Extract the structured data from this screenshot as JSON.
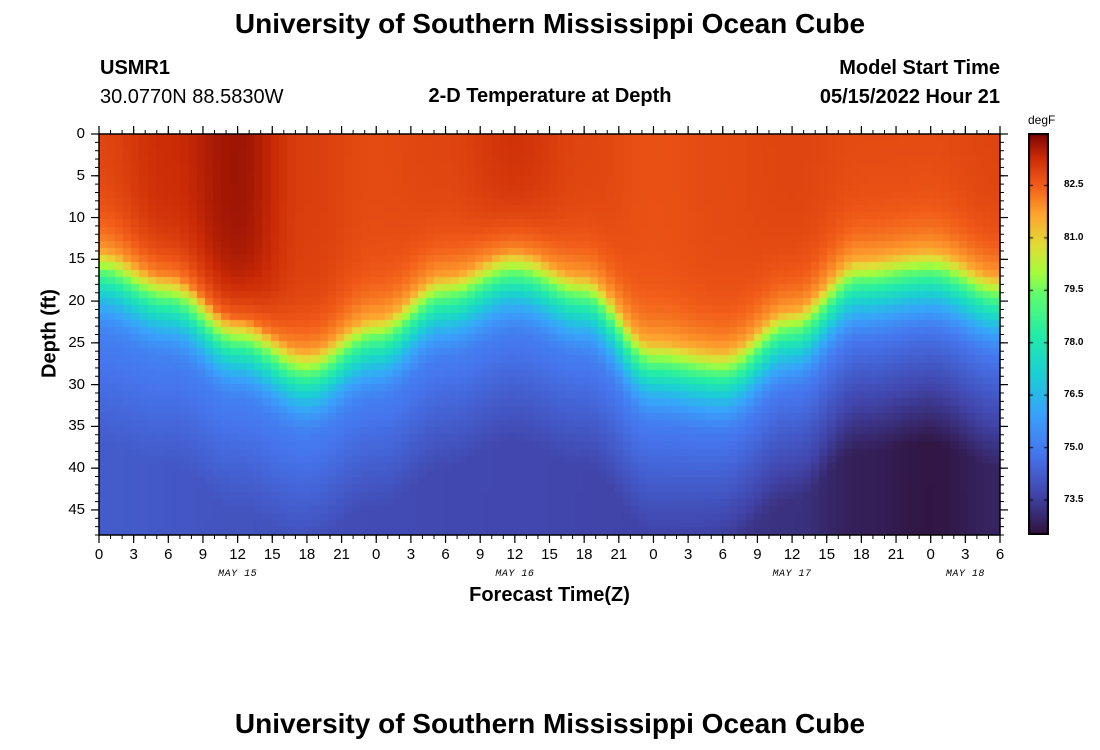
{
  "header": {
    "title": "University of Southern Mississippi Ocean Cube",
    "station": "USMR1",
    "coordinates": "30.0770N  88.5830W",
    "plot_title": "2-D Temperature at Depth",
    "model_label": "Model Start Time",
    "model_time": "05/15/2022 Hour 21"
  },
  "footer": {
    "title": "University of Southern Mississippi Ocean Cube"
  },
  "chart_data": {
    "type": "heatmap",
    "title": "2-D Temperature at Depth",
    "xlabel": "Forecast Time(Z)",
    "ylabel": "Depth (ft)",
    "x_unit": "hours since 05/15 00Z",
    "xlim": [
      0,
      78
    ],
    "ylim": [
      48,
      0
    ],
    "x_tick_values": [
      0,
      3,
      6,
      9,
      12,
      15,
      18,
      21,
      24,
      27,
      30,
      33,
      36,
      39,
      42,
      45,
      48,
      51,
      54,
      57,
      60,
      63,
      66,
      69,
      72,
      75,
      78
    ],
    "x_tick_labels": [
      "0",
      "3",
      "6",
      "9",
      "12",
      "15",
      "18",
      "21",
      "0",
      "3",
      "6",
      "9",
      "12",
      "15",
      "18",
      "21",
      "0",
      "3",
      "6",
      "9",
      "12",
      "15",
      "18",
      "21",
      "0",
      "3",
      "6"
    ],
    "date_labels": [
      {
        "hour": 12,
        "text": "MAY 15"
      },
      {
        "hour": 36,
        "text": "MAY 16"
      },
      {
        "hour": 60,
        "text": "MAY 17"
      },
      {
        "hour": 75,
        "text": "MAY 18"
      }
    ],
    "y_tick_values": [
      0,
      5,
      10,
      15,
      20,
      25,
      30,
      35,
      40,
      45
    ],
    "y_tick_labels": [
      "0",
      "5",
      "10",
      "15",
      "20",
      "25",
      "30",
      "35",
      "40",
      "45"
    ],
    "colorbar": {
      "unit": "degF",
      "min": 72.5,
      "max": 84.0,
      "ticks": [
        73.5,
        75.0,
        76.5,
        78.0,
        79.5,
        81.0,
        82.5
      ],
      "tick_labels": [
        "73.5",
        "75.0",
        "76.5",
        "78.0",
        "79.5",
        "81.0",
        "82.5"
      ]
    },
    "thermocline_depth_ft": {
      "hours": [
        0,
        6,
        12,
        18,
        24,
        30,
        36,
        42,
        48,
        54,
        60,
        66,
        72,
        78
      ],
      "values": [
        19,
        22,
        27,
        31,
        27,
        22,
        19,
        22,
        30,
        31,
        26,
        20,
        19,
        22
      ]
    },
    "surface_temp_degF": {
      "hours": [
        0,
        6,
        12,
        18,
        24,
        30,
        36,
        42,
        48,
        54,
        60,
        66,
        72,
        78
      ],
      "values": [
        82.9,
        83.3,
        83.7,
        83.0,
        82.8,
        82.9,
        83.2,
        82.9,
        82.7,
        82.8,
        82.9,
        82.8,
        82.8,
        82.9
      ]
    },
    "bottom_temp_degF": {
      "hours": [
        0,
        12,
        24,
        36,
        48,
        60,
        66,
        72,
        78
      ],
      "values": [
        74.2,
        74.0,
        73.8,
        73.7,
        73.6,
        73.2,
        72.8,
        72.6,
        72.9
      ]
    }
  }
}
